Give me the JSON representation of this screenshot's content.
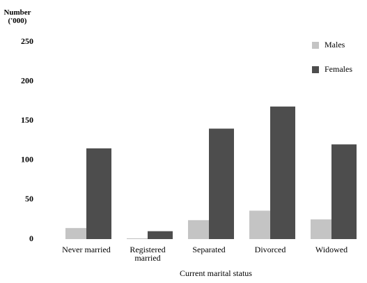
{
  "chart_data": {
    "type": "bar",
    "y_label": "Number ('000)",
    "x_label": "Current marital status",
    "categories": [
      "Never married",
      "Registered married",
      "Separated",
      "Divorced",
      "Widowed"
    ],
    "series": [
      {
        "name": "Males",
        "color": "#c4c4c4",
        "values": [
          14,
          1,
          24,
          36,
          25
        ]
      },
      {
        "name": "Females",
        "color": "#4d4d4d",
        "values": [
          115,
          10,
          140,
          168,
          120
        ]
      }
    ],
    "ylim": [
      0,
      250
    ],
    "yticks": [
      0,
      50,
      100,
      150,
      200,
      250
    ],
    "grid": false,
    "legend": "top-right"
  }
}
